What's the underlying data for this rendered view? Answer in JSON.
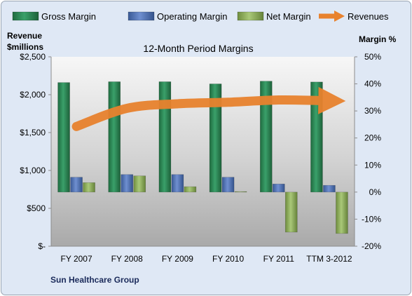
{
  "company": "Sun Healthcare Group",
  "chart_data": {
    "type": "bar",
    "title": "12-Month Period Margins",
    "categories": [
      "FY 2007",
      "FY 2008",
      "FY 2009",
      "FY 2010",
      "FY 2011",
      "TTM 3-2012"
    ],
    "left_axis": {
      "label_line1": "Revenue",
      "label_line2": "$millions",
      "range": [
        0,
        2500
      ],
      "ticks": [
        0,
        500,
        1000,
        1500,
        2000,
        2500
      ],
      "tick_labels": [
        "$-",
        "$500",
        "$1,000",
        "$1,500",
        "$2,000",
        "$2,500"
      ]
    },
    "right_axis": {
      "label": "Margin %",
      "range": [
        -20,
        50
      ],
      "ticks": [
        -20,
        -10,
        0,
        10,
        20,
        30,
        40,
        50
      ],
      "tick_labels": [
        "-20%",
        "-10%",
        "0%",
        "10%",
        "20%",
        "30%",
        "40%",
        "50%"
      ]
    },
    "series": [
      {
        "name": "Gross Margin",
        "axis": "right",
        "kind": "bar",
        "color": "#2e8a57",
        "values": [
          40.5,
          40.8,
          40.8,
          40.0,
          41.0,
          40.7
        ]
      },
      {
        "name": "Operating Margin",
        "axis": "right",
        "kind": "bar",
        "color": "#4f74b8",
        "values": [
          5.5,
          6.5,
          6.5,
          5.5,
          3.0,
          2.5
        ]
      },
      {
        "name": "Net Margin",
        "axis": "right",
        "kind": "bar",
        "color": "#8fb05a",
        "values": [
          3.5,
          6.0,
          2.0,
          0.2,
          -14.8,
          -15.3
        ]
      },
      {
        "name": "Revenues",
        "axis": "left",
        "kind": "line",
        "color": "#e8822e",
        "values": [
          1580,
          1820,
          1880,
          1900,
          1930,
          1920
        ]
      }
    ],
    "legend_position": "top",
    "grid": false
  }
}
